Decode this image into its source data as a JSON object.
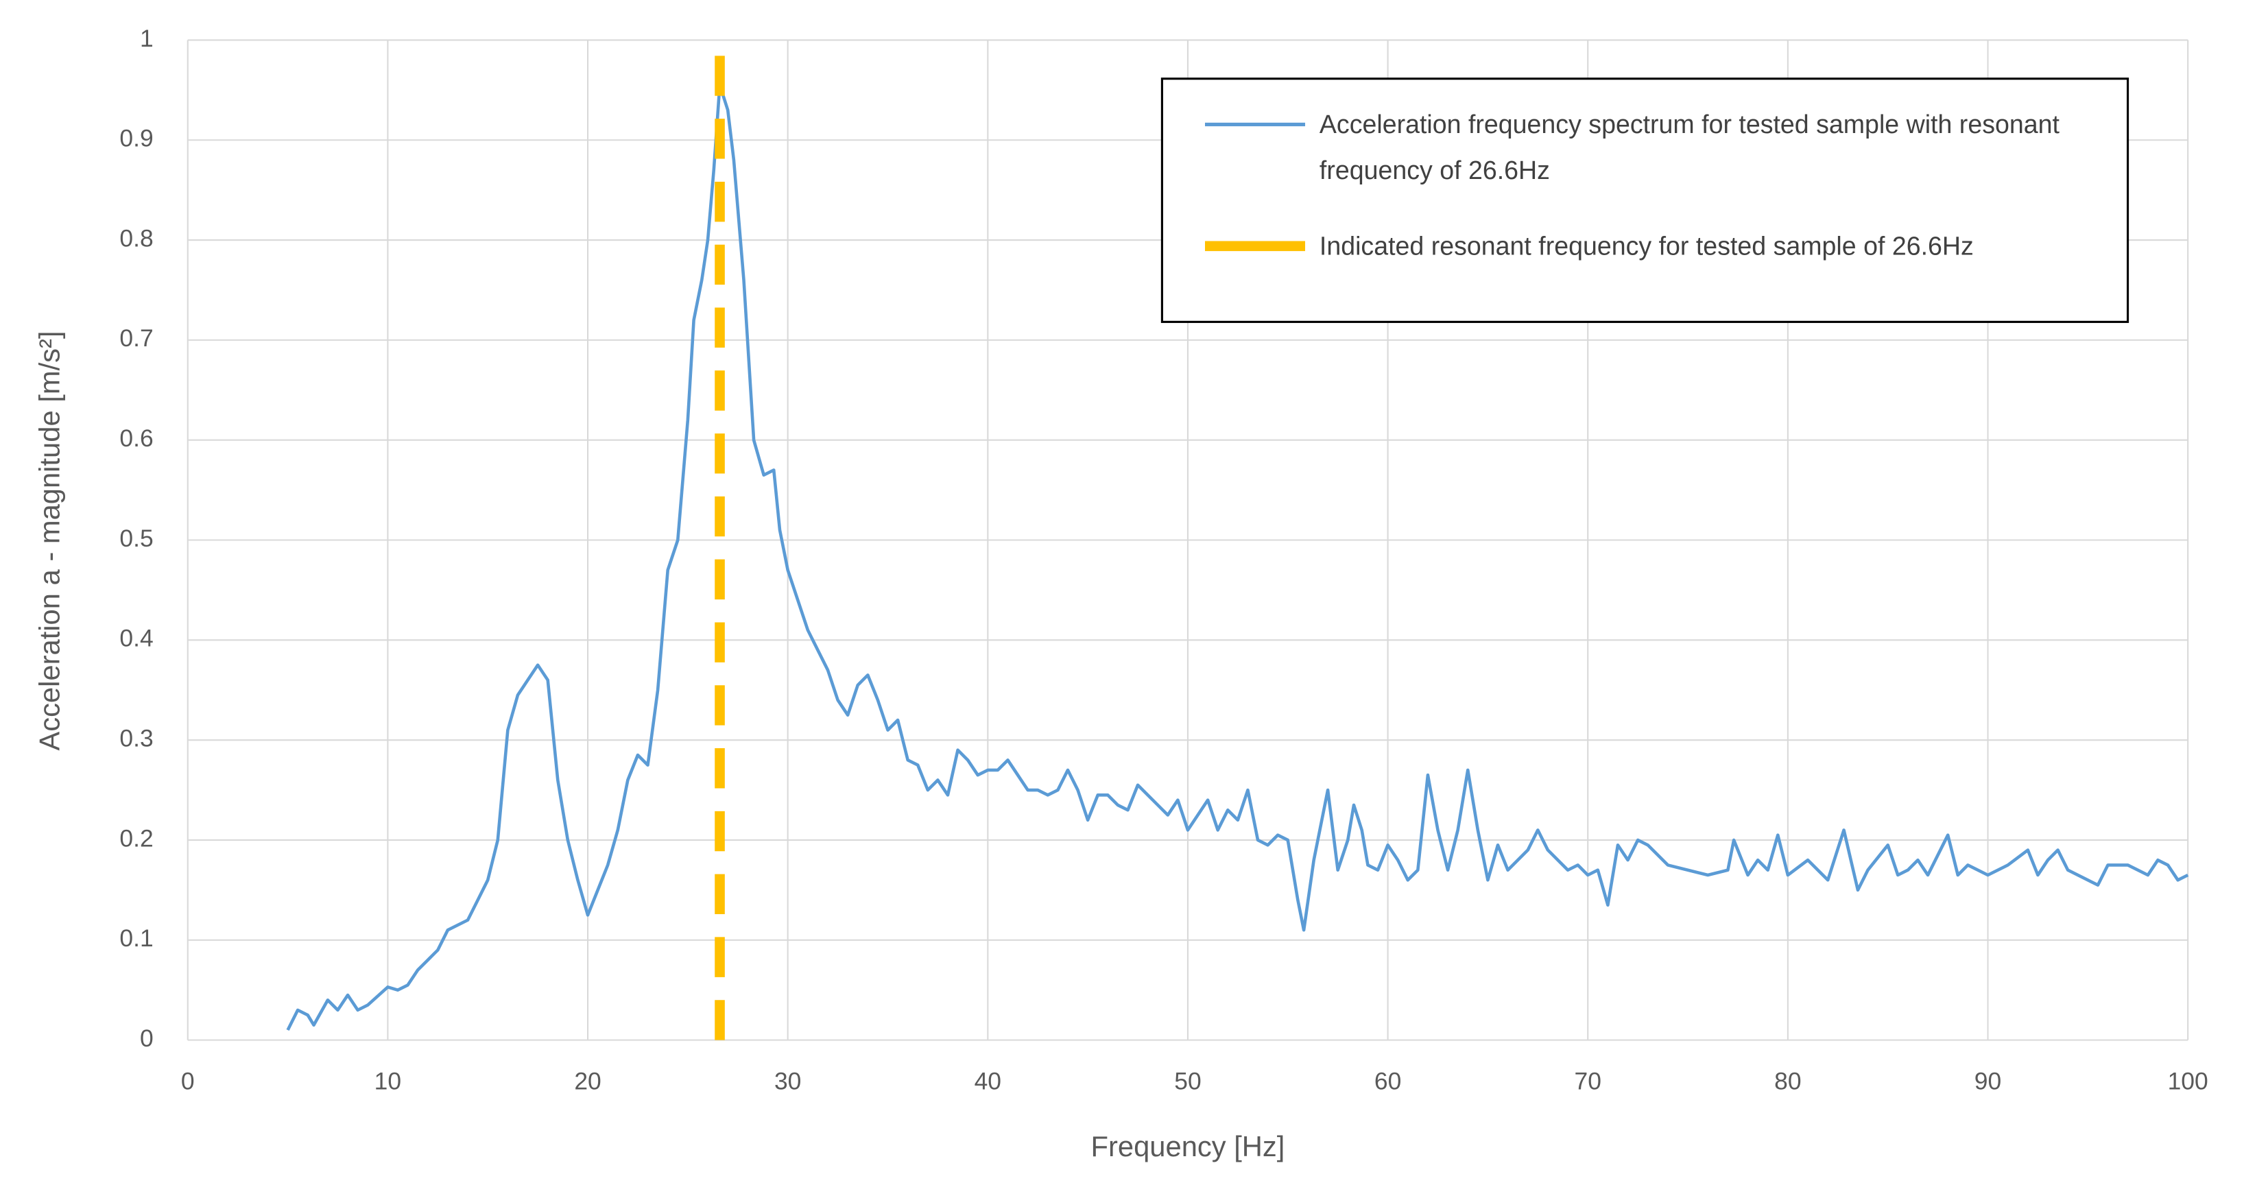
{
  "chart_data": {
    "type": "line",
    "xlabel": "Frequency [Hz]",
    "ylabel": "Acceleration a - magnitude [m/s²]",
    "xlim": [
      0,
      100
    ],
    "xticks": [
      0,
      10,
      20,
      30,
      40,
      50,
      60,
      70,
      80,
      90,
      100
    ],
    "ylim": [
      0,
      1
    ],
    "yticks": [
      0,
      0.1,
      0.2,
      0.3,
      0.4,
      0.5,
      0.6,
      0.7,
      0.8,
      0.9,
      1
    ],
    "grid": true,
    "legend": "upper right",
    "series": [
      {
        "name": "Acceleration frequency spectrum for tested sample with resonant frequency of 26.6Hz",
        "color": "#5b9bd5",
        "dashed": false,
        "x": [
          5,
          5.5,
          6,
          6.3,
          7,
          7.5,
          8,
          8.5,
          9,
          10,
          10.5,
          11,
          11.5,
          12,
          12.5,
          13,
          14,
          14.5,
          15,
          15.5,
          16,
          16.5,
          17,
          17.5,
          18,
          18.5,
          19,
          19.5,
          20,
          20.5,
          21,
          21.5,
          22,
          22.5,
          23,
          23.5,
          24,
          24.5,
          25,
          25.3,
          25.7,
          26,
          26.3,
          26.6,
          27,
          27.3,
          27.8,
          28.3,
          28.8,
          29.3,
          29.6,
          30,
          30.5,
          31,
          31.5,
          32,
          32.5,
          33,
          33.5,
          34,
          34.5,
          35,
          35.5,
          36,
          36.5,
          37,
          37.5,
          38,
          38.5,
          39,
          39.5,
          40,
          40.5,
          41,
          41.5,
          42,
          42.5,
          43,
          43.5,
          44,
          44.5,
          45,
          45.5,
          46,
          46.5,
          47,
          47.5,
          48,
          48.5,
          49,
          49.5,
          50,
          50.5,
          51,
          51.5,
          52,
          52.5,
          53,
          53.5,
          54,
          54.5,
          55,
          55.5,
          55.8,
          56.3,
          57,
          57.5,
          58,
          58.3,
          58.7,
          59,
          59.5,
          60,
          60.5,
          61,
          61.5,
          62,
          62.5,
          63,
          63.5,
          64,
          64.5,
          65,
          65.5,
          66,
          66.5,
          67,
          67.5,
          68,
          68.5,
          69,
          69.5,
          70,
          70.5,
          71,
          71.5,
          72,
          72.5,
          73,
          74,
          75,
          76,
          77,
          77.3,
          78,
          78.5,
          79,
          79.5,
          80,
          81,
          82,
          82.8,
          83.5,
          84,
          85,
          85.5,
          86,
          86.5,
          87,
          88,
          88.5,
          89,
          90,
          91,
          92,
          92.5,
          93,
          93.5,
          94,
          95,
          95.5,
          96,
          97,
          98,
          98.5,
          99,
          99.5,
          100
        ],
        "values": [
          0.01,
          0.03,
          0.025,
          0.015,
          0.04,
          0.03,
          0.045,
          0.03,
          0.035,
          0.053,
          0.05,
          0.055,
          0.07,
          0.08,
          0.09,
          0.11,
          0.12,
          0.14,
          0.16,
          0.2,
          0.31,
          0.345,
          0.36,
          0.375,
          0.36,
          0.26,
          0.2,
          0.16,
          0.125,
          0.15,
          0.175,
          0.21,
          0.26,
          0.285,
          0.275,
          0.35,
          0.47,
          0.5,
          0.62,
          0.72,
          0.76,
          0.8,
          0.87,
          0.955,
          0.93,
          0.88,
          0.76,
          0.6,
          0.565,
          0.57,
          0.51,
          0.47,
          0.44,
          0.41,
          0.39,
          0.37,
          0.34,
          0.325,
          0.355,
          0.365,
          0.34,
          0.31,
          0.32,
          0.28,
          0.275,
          0.25,
          0.26,
          0.245,
          0.29,
          0.28,
          0.265,
          0.27,
          0.27,
          0.28,
          0.265,
          0.25,
          0.25,
          0.245,
          0.25,
          0.27,
          0.25,
          0.22,
          0.245,
          0.245,
          0.235,
          0.23,
          0.255,
          0.245,
          0.235,
          0.225,
          0.24,
          0.21,
          0.225,
          0.24,
          0.21,
          0.23,
          0.22,
          0.25,
          0.2,
          0.195,
          0.205,
          0.2,
          0.14,
          0.11,
          0.18,
          0.25,
          0.17,
          0.2,
          0.235,
          0.21,
          0.175,
          0.17,
          0.195,
          0.18,
          0.16,
          0.17,
          0.265,
          0.21,
          0.17,
          0.21,
          0.27,
          0.21,
          0.16,
          0.195,
          0.17,
          0.18,
          0.19,
          0.21,
          0.19,
          0.18,
          0.17,
          0.175,
          0.165,
          0.17,
          0.135,
          0.195,
          0.18,
          0.2,
          0.195,
          0.175,
          0.17,
          0.165,
          0.17,
          0.2,
          0.165,
          0.18,
          0.17,
          0.205,
          0.165,
          0.18,
          0.16,
          0.21,
          0.15,
          0.17,
          0.195,
          0.165,
          0.17,
          0.18,
          0.165,
          0.205,
          0.165,
          0.175,
          0.165,
          0.175,
          0.19,
          0.165,
          0.18,
          0.19,
          0.17,
          0.16,
          0.155,
          0.175,
          0.175,
          0.165,
          0.18,
          0.175,
          0.16,
          0.165
        ]
      },
      {
        "name": "Indicated resonant frequency for tested sample of 26.6Hz",
        "color": "#ffc000",
        "dashed": true,
        "x": [
          26.6,
          26.6
        ],
        "values": [
          0,
          1
        ]
      }
    ]
  }
}
